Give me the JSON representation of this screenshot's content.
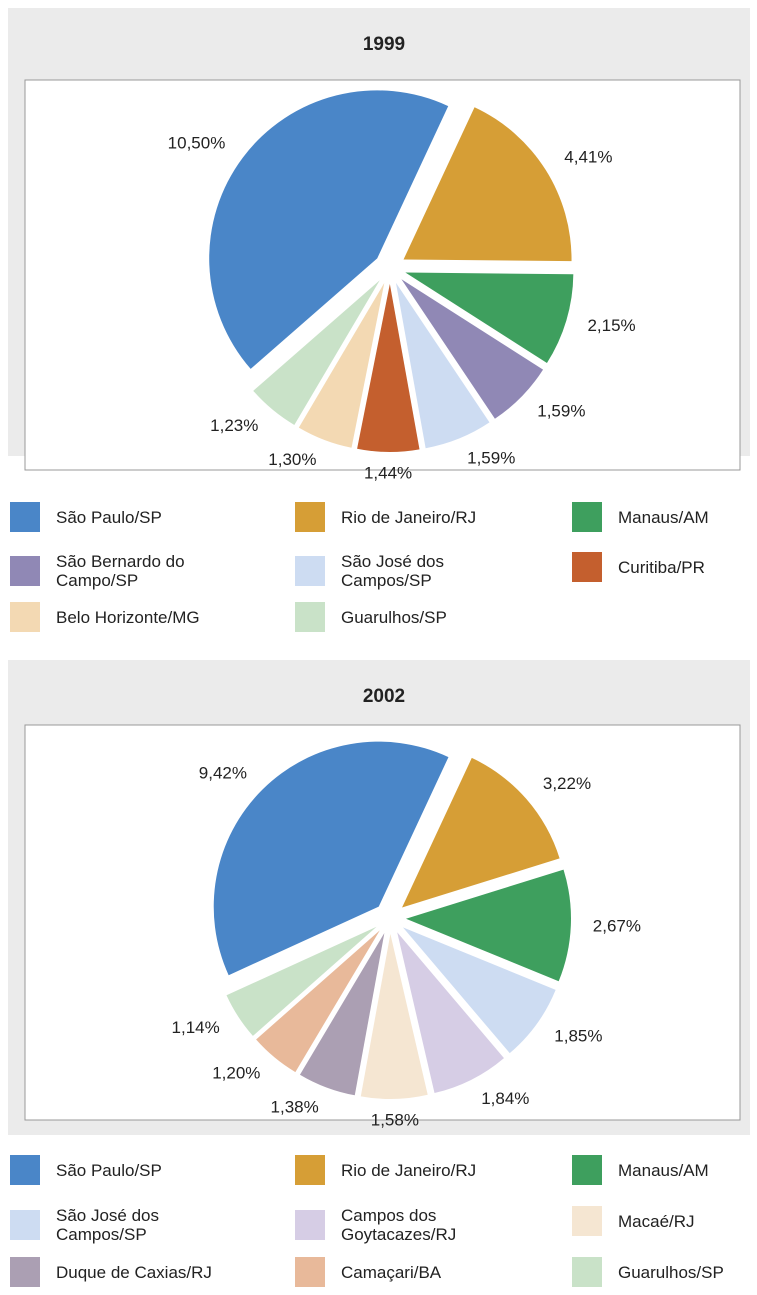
{
  "chart_data": [
    {
      "type": "pie",
      "title": "1999",
      "categories": [
        "São Paulo/SP",
        "Rio de Janeiro/RJ",
        "Manaus/AM",
        "São Bernardo do Campo/SP",
        "São José dos Campos/SP",
        "Curitiba/PR",
        "Belo Horizonte/MG",
        "Guarulhos/SP"
      ],
      "values": [
        10.5,
        4.41,
        2.15,
        1.59,
        1.59,
        1.44,
        1.3,
        1.23
      ],
      "value_labels": [
        "10,50%",
        "4,41%",
        "2,15%",
        "1,59%",
        "1,59%",
        "1,44%",
        "1,30%",
        "1,23%"
      ],
      "colors": [
        "#4a86c8",
        "#d69e36",
        "#3e9f5e",
        "#9088b5",
        "#cddcf2",
        "#c45f2e",
        "#f3d9b3",
        "#c9e2c8"
      ]
    },
    {
      "type": "pie",
      "title": "2002",
      "categories": [
        "São Paulo/SP",
        "Rio de Janeiro/RJ",
        "Manaus/AM",
        "São José dos Campos/SP",
        "Campos dos Goytacazes/RJ",
        "Macaé/RJ",
        "Duque de Caxias/RJ",
        "Camaçari/BA",
        "Guarulhos/SP"
      ],
      "values": [
        9.42,
        3.22,
        2.67,
        1.85,
        1.84,
        1.58,
        1.38,
        1.2,
        1.14
      ],
      "value_labels": [
        "9,42%",
        "3,22%",
        "2,67%",
        "1,85%",
        "1,84%",
        "1,58%",
        "1,38%",
        "1,20%",
        "1,14%"
      ],
      "colors": [
        "#4a86c8",
        "#d69e36",
        "#3e9f5e",
        "#cddcf2",
        "#d6cde5",
        "#f5e6d2",
        "#ab9fb3",
        "#e8b99a",
        "#c9e2c8"
      ]
    }
  ]
}
